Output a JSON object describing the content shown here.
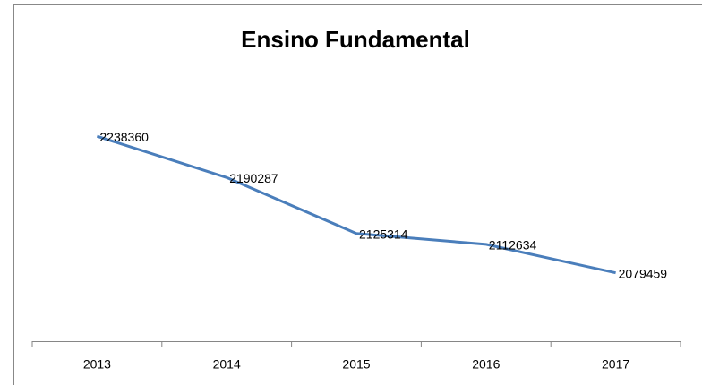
{
  "chart_data": {
    "type": "line",
    "title": "Ensino Fundamental",
    "categories": [
      "2013",
      "2014",
      "2015",
      "2016",
      "2017"
    ],
    "series": [
      {
        "name": "Ensino Fundamental",
        "color": "#4a7ebb",
        "values": [
          2238360,
          2190287,
          2125314,
          2112634,
          2079459
        ]
      }
    ],
    "ylim": [
      2000000,
      2250000
    ]
  }
}
